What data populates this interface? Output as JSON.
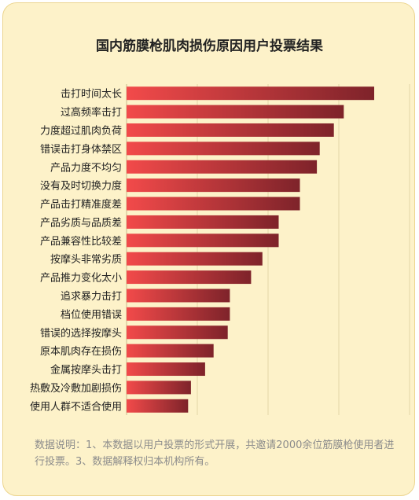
{
  "chart_data": {
    "type": "bar",
    "orientation": "horizontal",
    "title": "国内筋膜枪肌肉损伤原因用户投票结果",
    "categories": [
      "击打时间太长",
      "过高频率击打",
      "力度超过肌肉负荷",
      "错误击打身体禁区",
      "产品力度不均匀",
      "没有及时切换力度",
      "产品击打精准度差",
      "产品劣质与品质差",
      "产品兼容性比较差",
      "按摩头非常劣质",
      "产品推力变化太小",
      "追求暴力击打",
      "档位使用错误",
      "错误的选择按摩头",
      "原本肌肉存在损伤",
      "金属按摩头击打",
      "热敷及冷敷加剧损伤",
      "使用人群不适合使用"
    ],
    "values": [
      35,
      30.7,
      29.3,
      27.3,
      26.9,
      24.5,
      24.5,
      21.5,
      21.5,
      19.2,
      17.6,
      14.6,
      14.6,
      14.3,
      12.3,
      11.1,
      9.1,
      8.7
    ],
    "xlim": [
      0,
      40
    ],
    "grid": true,
    "legend": "none",
    "colors": {
      "bar_start": "#f24a4a",
      "bar_end": "#7e232a",
      "grid": "#e4d6a6"
    }
  },
  "note": "数据说明：1、本数据以用户投票的形式开展，共邀请2000余位筋膜枪使用者进行投票。3、数据解释权归本机构所有。"
}
